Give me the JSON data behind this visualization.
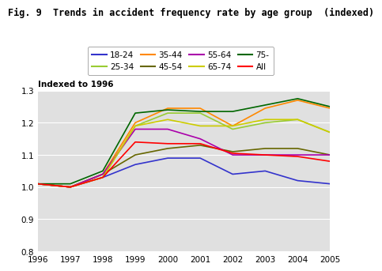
{
  "title": "Fig. 9  Trends in accident frequency rate by age group  (indexed)",
  "ylabel": "Indexed to 1996",
  "years": [
    1996,
    1997,
    1998,
    1999,
    2000,
    2001,
    2002,
    2003,
    2004,
    2005
  ],
  "series": {
    "18-24": [
      1.01,
      1.0,
      1.03,
      1.07,
      1.09,
      1.09,
      1.04,
      1.05,
      1.02,
      1.01
    ],
    "25-34": [
      1.01,
      1.0,
      1.03,
      1.19,
      1.23,
      1.23,
      1.18,
      1.2,
      1.21,
      1.17
    ],
    "35-44": [
      1.01,
      1.0,
      1.04,
      1.2,
      1.245,
      1.245,
      1.19,
      1.245,
      1.27,
      1.245
    ],
    "45-54": [
      1.01,
      1.0,
      1.04,
      1.1,
      1.12,
      1.13,
      1.11,
      1.12,
      1.12,
      1.1
    ],
    "55-64": [
      1.01,
      1.0,
      1.04,
      1.18,
      1.18,
      1.15,
      1.1,
      1.1,
      1.1,
      1.1
    ],
    "65-74": [
      1.01,
      1.0,
      1.03,
      1.19,
      1.21,
      1.19,
      1.19,
      1.21,
      1.21,
      1.17
    ],
    "75-": [
      1.01,
      1.01,
      1.05,
      1.23,
      1.24,
      1.235,
      1.235,
      1.255,
      1.275,
      1.25
    ],
    "All": [
      1.01,
      1.0,
      1.03,
      1.14,
      1.135,
      1.135,
      1.105,
      1.1,
      1.095,
      1.08
    ]
  },
  "legend_order": [
    "18-24",
    "25-34",
    "35-44",
    "45-54",
    "55-64",
    "65-74",
    "75-",
    "All"
  ],
  "colors": {
    "18-24": "#3333cc",
    "25-34": "#99cc33",
    "35-44": "#ff8800",
    "45-54": "#666600",
    "55-64": "#aa00aa",
    "65-74": "#cccc00",
    "75-": "#006600",
    "All": "#ff0000"
  },
  "ylim": [
    0.8,
    1.3
  ],
  "yticks": [
    0.8,
    0.9,
    1.0,
    1.1,
    1.2,
    1.3
  ],
  "bg_color": "#e0e0e0",
  "title_fontsize": 8.5,
  "tick_fontsize": 7.5,
  "legend_fontsize": 7.5
}
